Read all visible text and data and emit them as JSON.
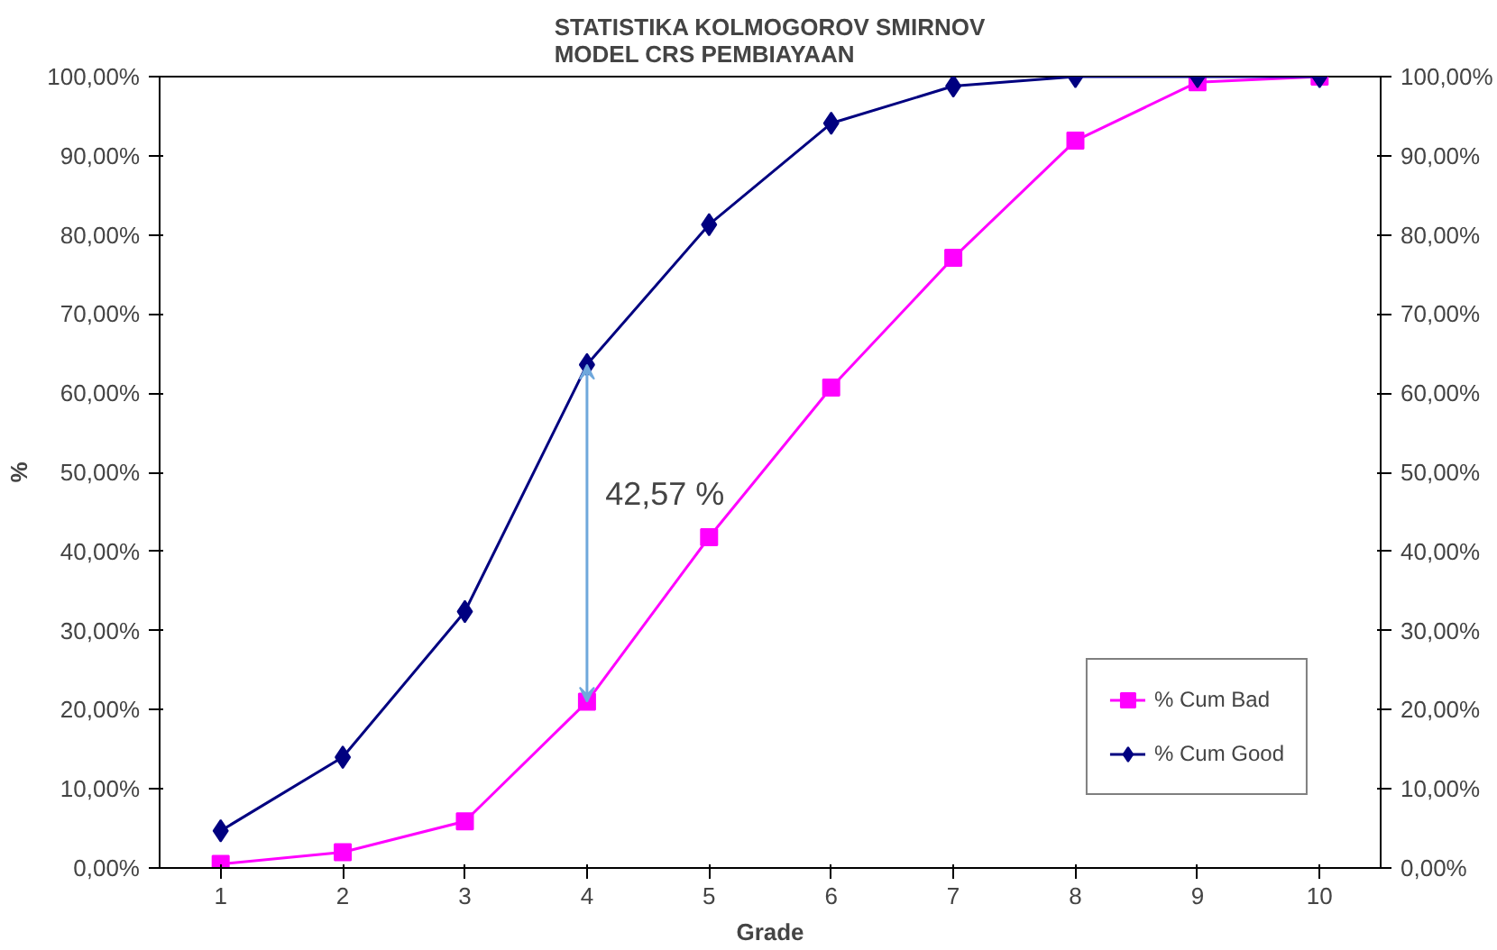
{
  "chart_data": {
    "type": "line",
    "title": "STATISTIKA KOLMOGOROV SMIRNOV\nMODEL CRS PEMBIAYAAN",
    "xlabel": "Grade",
    "ylabel": "%",
    "categories": [
      "1",
      "2",
      "3",
      "4",
      "5",
      "6",
      "7",
      "8",
      "9",
      "10"
    ],
    "series": [
      {
        "name": "% Cum Bad",
        "color": "#ff00ff",
        "marker": "square",
        "values": [
          0.5,
          2.0,
          5.9,
          21.0,
          41.8,
          60.7,
          77.1,
          91.9,
          99.3,
          100
        ]
      },
      {
        "name": "% Cum Good",
        "color": "#000080",
        "marker": "diamond",
        "values": [
          4.7,
          14.0,
          32.4,
          63.6,
          81.3,
          94.1,
          98.8,
          100,
          100,
          100
        ]
      }
    ],
    "ylim": [
      0,
      100
    ],
    "yticks": [
      {
        "value": 0,
        "label": "0,00%"
      },
      {
        "value": 10,
        "label": "10,00%"
      },
      {
        "value": 20,
        "label": "20,00%"
      },
      {
        "value": 30,
        "label": "30,00%"
      },
      {
        "value": 40,
        "label": "40,00%"
      },
      {
        "value": 50,
        "label": "50,00%"
      },
      {
        "value": 60,
        "label": "60,00%"
      },
      {
        "value": 70,
        "label": "70,00%"
      },
      {
        "value": 80,
        "label": "80,00%"
      },
      {
        "value": 90,
        "label": "90,00%"
      },
      {
        "value": 100,
        "label": "100,00%"
      }
    ],
    "y2lim": [
      0,
      100
    ],
    "y2ticks": [
      {
        "value": 0,
        "label": "0,00%"
      },
      {
        "value": 10,
        "label": "10,00%"
      },
      {
        "value": 20,
        "label": "20,00%"
      },
      {
        "value": 30,
        "label": "30,00%"
      },
      {
        "value": 40,
        "label": "40,00%"
      },
      {
        "value": 50,
        "label": "50,00%"
      },
      {
        "value": 60,
        "label": "60,00%"
      },
      {
        "value": 70,
        "label": "70,00%"
      },
      {
        "value": 80,
        "label": "80,00%"
      },
      {
        "value": 90,
        "label": "90,00%"
      },
      {
        "value": 100,
        "label": "100,00%"
      }
    ],
    "annotations": [
      "42,57 %"
    ],
    "grid": false,
    "legend": "bottom right",
    "line_style": "solid"
  }
}
